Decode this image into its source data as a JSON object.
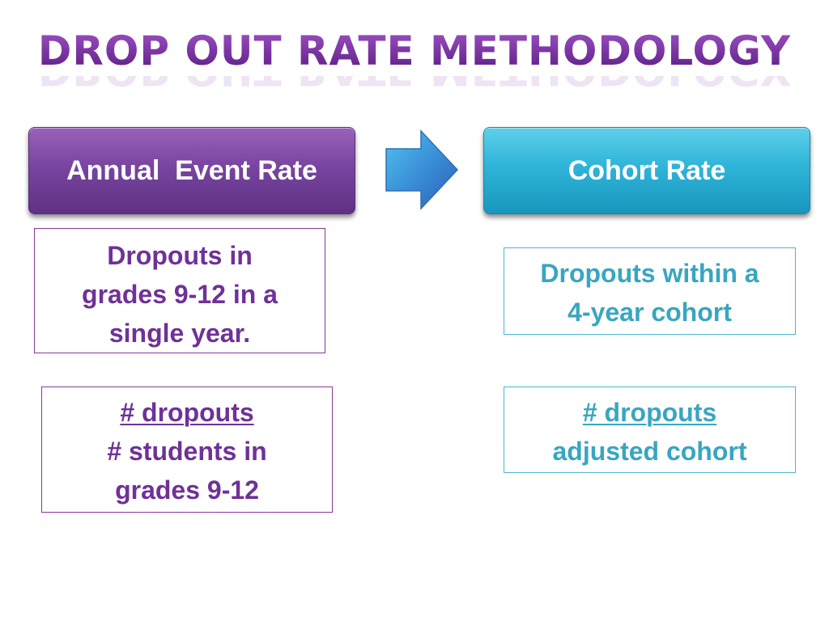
{
  "title": "DROP OUT RATE METHODOLOGY",
  "left": {
    "header": "Annual  Event Rate",
    "definition": [
      "Dropouts in",
      "grades 9-12 in a",
      "single year."
    ],
    "formula": {
      "numerator": "# dropouts",
      "denominator": [
        "# students in",
        "grades 9-12"
      ]
    }
  },
  "right": {
    "header": "Cohort Rate",
    "definition": [
      "Dropouts within a",
      "4-year cohort"
    ],
    "formula": {
      "numerator": "# dropouts",
      "denominator": [
        "adjusted cohort"
      ]
    }
  },
  "colors": {
    "purple": "#7845a0",
    "teal": "#2fb4d8",
    "purple_text": "#6f3197",
    "teal_text": "#38a6c0"
  },
  "icons": {
    "flow_arrow": "right-arrow-icon"
  }
}
